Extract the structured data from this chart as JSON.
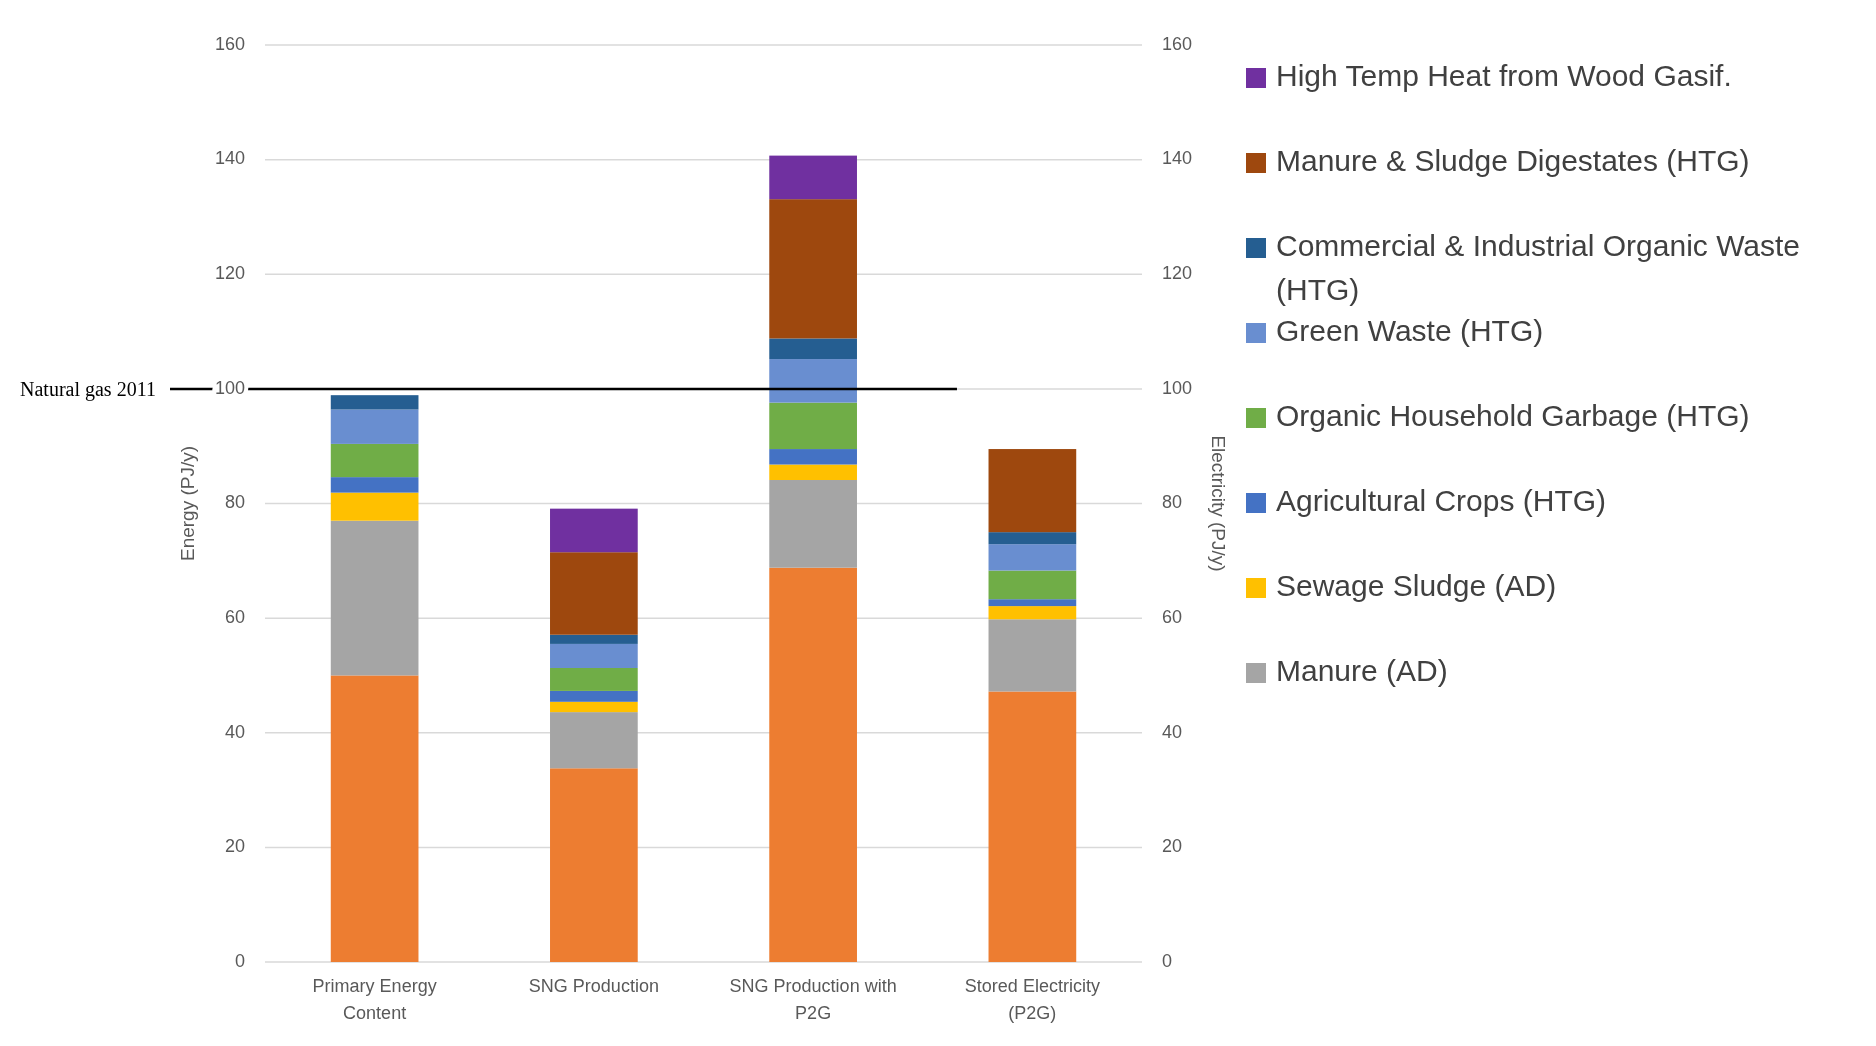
{
  "chart_data": {
    "type": "bar",
    "stacked": true,
    "ylabel": "Energy (PJ/y)",
    "y2label": "Electricity (PJ/y)",
    "categories": [
      "Primary Energy Content",
      "SNG Production",
      "SNG Production with P2G",
      "Stored Electricity (P2G)"
    ],
    "series": [
      {
        "color": "#ed7d31",
        "values": [
          50,
          33.8,
          68.8,
          47.2
        ]
      },
      {
        "name": "Manure (AD)",
        "color": "#a5a5a5",
        "values": [
          27,
          9.8,
          15.3,
          12.6
        ]
      },
      {
        "name": "Sewage Sludge (AD)",
        "color": "#ffc000",
        "values": [
          4.9,
          1.8,
          2.7,
          2.3
        ]
      },
      {
        "name": "Agricultural Crops (HTG)",
        "color": "#4472c4",
        "values": [
          2.7,
          1.9,
          2.7,
          1.2
        ]
      },
      {
        "name": "Organic Household Garbage (HTG)",
        "color": "#70ad47",
        "values": [
          5.8,
          4,
          8.1,
          5
        ]
      },
      {
        "name": "Green Waste (HTG)",
        "color": "#698ed0",
        "values": [
          6,
          4.2,
          7.6,
          4.6
        ]
      },
      {
        "name": "Commercial & Industrial Organic Waste (HTG)",
        "color": "#255e91",
        "values": [
          2.5,
          1.6,
          3.6,
          2.1
        ]
      },
      {
        "name": "Manure & Sludge Digestates (HTG)",
        "color": "#9e480e",
        "values": [
          null,
          14.4,
          24.3,
          14.5
        ]
      },
      {
        "name": "High Temp Heat from Wood Gasif.",
        "color": "#7030a0",
        "values": [
          null,
          7.6,
          7.6,
          null
        ]
      }
    ],
    "ylim": [
      0,
      160
    ],
    "yticks": [
      0,
      20,
      40,
      60,
      80,
      100,
      120,
      140,
      160
    ],
    "y2lim": [
      0,
      160
    ],
    "y2ticks": [
      0,
      20,
      40,
      60,
      80,
      100,
      120,
      140,
      160
    ],
    "ref_lines": [
      {
        "axis": "y",
        "value": 100,
        "label": "Natural gas 2011",
        "color": "#000000"
      }
    ],
    "grid": "y",
    "legend": "right"
  }
}
